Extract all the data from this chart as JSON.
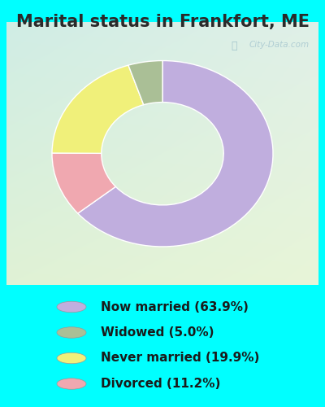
{
  "title": "Marital status in Frankfort, ME",
  "slices": [
    63.9,
    11.2,
    19.9,
    5.0
  ],
  "labels": [
    "Now married (63.9%)",
    "Widowed (5.0%)",
    "Never married (19.9%)",
    "Divorced (11.2%)"
  ],
  "legend_order": [
    0,
    3,
    2,
    1
  ],
  "colors": [
    "#c0aede",
    "#f0a8b0",
    "#f0f07a",
    "#aabf96"
  ],
  "chart_bg_top_left": "#d0ede5",
  "chart_bg_bottom_right": "#e8f5d8",
  "outer_background": "#00ffff",
  "title_fontsize": 15,
  "title_color": "#2a2a2a",
  "legend_fontsize": 11,
  "watermark": "City-Data.com",
  "donut_outer_r": 0.85,
  "donut_width": 0.38,
  "start_angle": 90
}
